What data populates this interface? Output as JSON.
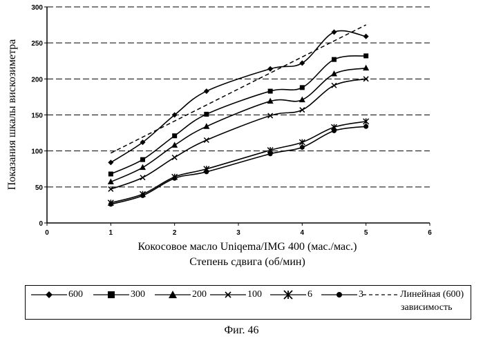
{
  "figure_caption": "Фиг. 46",
  "chart_data": {
    "type": "line",
    "title": "",
    "xlabel_line1": "Кокосовое масло Uniqema/IMG 400 (мас./мас.)",
    "xlabel_line2": "Степень сдвига (об/мин)",
    "ylabel": "Показания шкалы вискозиметра",
    "xlim": [
      0,
      6
    ],
    "ylim": [
      0,
      300
    ],
    "x_ticks": [
      "0",
      "1",
      "2",
      "3",
      "4",
      "5",
      "6"
    ],
    "y_ticks": [
      "0",
      "50",
      "100",
      "150",
      "200",
      "250",
      "300"
    ],
    "grid": "horizontal dashed",
    "legend_placement": "bottom",
    "x": [
      1,
      1.5,
      2,
      2.5,
      3.5,
      4,
      4.5,
      5
    ],
    "series": [
      {
        "name": "600",
        "marker": "diamond",
        "values": [
          84,
          112,
          150,
          183,
          214,
          222,
          265,
          259
        ]
      },
      {
        "name": "300",
        "marker": "square",
        "values": [
          68,
          88,
          121,
          151,
          183,
          188,
          227,
          232
        ]
      },
      {
        "name": "200",
        "marker": "triangle",
        "values": [
          57,
          77,
          108,
          134,
          169,
          171,
          207,
          215
        ]
      },
      {
        "name": "100",
        "marker": "x",
        "values": [
          47,
          63,
          91,
          115,
          149,
          157,
          191,
          200
        ]
      },
      {
        "name": "6",
        "marker": "zhe",
        "values": [
          28,
          40,
          64,
          75,
          101,
          112,
          133,
          141
        ]
      },
      {
        "name": "3",
        "marker": "circle",
        "values": [
          26,
          38,
          62,
          71,
          96,
          105,
          128,
          134
        ]
      }
    ],
    "trendline": {
      "name_line1": "Линейная (600)",
      "name_line2": "зависимость",
      "x": [
        1,
        5
      ],
      "values": [
        97,
        275
      ]
    }
  }
}
